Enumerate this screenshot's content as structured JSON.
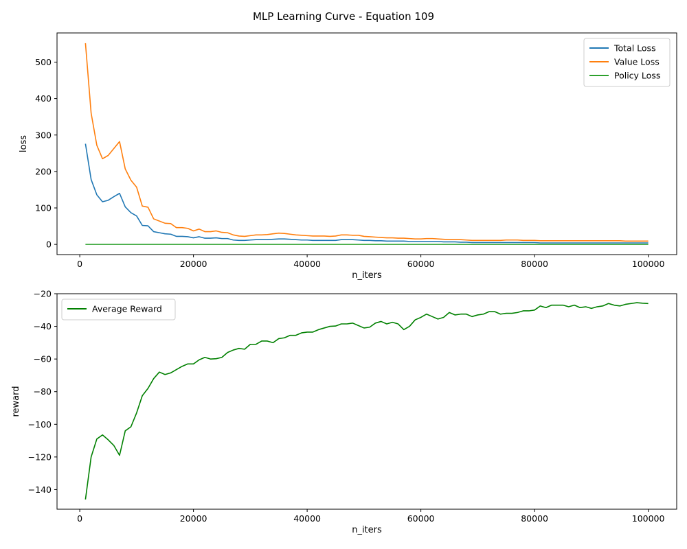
{
  "figure": {
    "title": "MLP Learning Curve - Equation 109"
  },
  "chart_data": [
    {
      "type": "line",
      "title": "",
      "xlabel": "n_iters",
      "ylabel": "loss",
      "xlim": [
        -4000,
        105000
      ],
      "ylim": [
        -28,
        580
      ],
      "xticks": [
        0,
        20000,
        40000,
        60000,
        80000,
        100000
      ],
      "yticks": [
        0,
        100,
        200,
        300,
        400,
        500
      ],
      "grid": false,
      "legend_position": "top-right",
      "x": [
        1000,
        2000,
        3000,
        4000,
        5000,
        6000,
        7000,
        8000,
        9000,
        10000,
        11000,
        12000,
        13000,
        14000,
        15000,
        16000,
        17000,
        18000,
        19000,
        20000,
        21000,
        22000,
        23000,
        24000,
        25000,
        26000,
        27000,
        28000,
        29000,
        30000,
        31000,
        32000,
        33000,
        34000,
        35000,
        36000,
        37000,
        38000,
        39000,
        40000,
        41000,
        42000,
        43000,
        44000,
        45000,
        46000,
        47000,
        48000,
        49000,
        50000,
        51000,
        52000,
        53000,
        54000,
        55000,
        56000,
        57000,
        58000,
        59000,
        60000,
        61000,
        62000,
        63000,
        64000,
        65000,
        66000,
        67000,
        68000,
        69000,
        70000,
        71000,
        72000,
        73000,
        74000,
        75000,
        76000,
        77000,
        78000,
        79000,
        80000,
        81000,
        82000,
        83000,
        84000,
        85000,
        86000,
        87000,
        88000,
        89000,
        90000,
        91000,
        92000,
        93000,
        94000,
        95000,
        96000,
        97000,
        98000,
        99000,
        100000
      ],
      "series": [
        {
          "name": "Total Loss",
          "color": "#1f77b4",
          "values": [
            276,
            178,
            136,
            117,
            121,
            131,
            140,
            103,
            87,
            78,
            52,
            51,
            35,
            32,
            29,
            28,
            22,
            22,
            21,
            18,
            21,
            17,
            17,
            18,
            16,
            16,
            12,
            11,
            11,
            12,
            13,
            13,
            13,
            14,
            15,
            15,
            14,
            13,
            12,
            12,
            11,
            11,
            11,
            11,
            11,
            13,
            13,
            13,
            12,
            11,
            11,
            10,
            10,
            9,
            9,
            9,
            9,
            8,
            8,
            8,
            8,
            8,
            8,
            7,
            7,
            7,
            6,
            6,
            5,
            5,
            5,
            5,
            5,
            5,
            5,
            5,
            5,
            5,
            5,
            5,
            4,
            4,
            4,
            4,
            4,
            4,
            4,
            4,
            4,
            4,
            4,
            4,
            4,
            4,
            4,
            4,
            4,
            4,
            4,
            4
          ]
        },
        {
          "name": "Value Loss",
          "color": "#ff7f0e",
          "values": [
            552,
            360,
            272,
            235,
            244,
            263,
            282,
            207,
            176,
            157,
            105,
            102,
            70,
            64,
            58,
            57,
            46,
            46,
            44,
            37,
            42,
            35,
            35,
            37,
            33,
            32,
            26,
            23,
            22,
            24,
            26,
            26,
            27,
            29,
            31,
            30,
            28,
            26,
            25,
            24,
            23,
            23,
            23,
            22,
            23,
            26,
            26,
            25,
            25,
            22,
            21,
            20,
            19,
            18,
            18,
            17,
            17,
            16,
            15,
            15,
            16,
            16,
            15,
            14,
            13,
            13,
            13,
            12,
            11,
            11,
            11,
            11,
            11,
            11,
            12,
            12,
            12,
            11,
            11,
            11,
            10,
            10,
            10,
            10,
            10,
            10,
            10,
            10,
            10,
            10,
            10,
            10,
            10,
            10,
            10,
            9,
            9,
            9,
            9,
            9
          ]
        },
        {
          "name": "Policy Loss",
          "color": "#2ca02c",
          "values": [
            0,
            0,
            0,
            0,
            0,
            0,
            0,
            0,
            0,
            0,
            0,
            0,
            0,
            0,
            0,
            0,
            0,
            0,
            0,
            0,
            0,
            0,
            0,
            0,
            0,
            0,
            0,
            0,
            0,
            0,
            0,
            0,
            0,
            0,
            0,
            0,
            0,
            0,
            0,
            0,
            0,
            0,
            0,
            0,
            0,
            0,
            0,
            0,
            0,
            0,
            0,
            0,
            0,
            0,
            0,
            0,
            0,
            0,
            0,
            0,
            0,
            0,
            0,
            0,
            0,
            0,
            0,
            0,
            0,
            0,
            0,
            0,
            0,
            0,
            0,
            0,
            0,
            0,
            0,
            0,
            0,
            0,
            0,
            0,
            0,
            0,
            0,
            0,
            0,
            0,
            0,
            0,
            0,
            0,
            0,
            0,
            0,
            0,
            0,
            0
          ]
        }
      ]
    },
    {
      "type": "line",
      "title": "",
      "xlabel": "n_iters",
      "ylabel": "reward",
      "xlim": [
        -4000,
        105000
      ],
      "ylim": [
        -152,
        -20
      ],
      "xticks": [
        0,
        20000,
        40000,
        60000,
        80000,
        100000
      ],
      "yticks": [
        -140,
        -120,
        -100,
        -80,
        -60,
        -40,
        -20
      ],
      "grid": false,
      "legend_position": "top-left",
      "x": [
        1000,
        2000,
        3000,
        4000,
        5000,
        6000,
        7000,
        8000,
        9000,
        10000,
        11000,
        12000,
        13000,
        14000,
        15000,
        16000,
        17000,
        18000,
        19000,
        20000,
        21000,
        22000,
        23000,
        24000,
        25000,
        26000,
        27000,
        28000,
        29000,
        30000,
        31000,
        32000,
        33000,
        34000,
        35000,
        36000,
        37000,
        38000,
        39000,
        40000,
        41000,
        42000,
        43000,
        44000,
        45000,
        46000,
        47000,
        48000,
        49000,
        50000,
        51000,
        52000,
        53000,
        54000,
        55000,
        56000,
        57000,
        58000,
        59000,
        60000,
        61000,
        62000,
        63000,
        64000,
        65000,
        66000,
        67000,
        68000,
        69000,
        70000,
        71000,
        72000,
        73000,
        74000,
        75000,
        76000,
        77000,
        78000,
        79000,
        80000,
        81000,
        82000,
        83000,
        84000,
        85000,
        86000,
        87000,
        88000,
        89000,
        90000,
        91000,
        92000,
        93000,
        94000,
        95000,
        96000,
        97000,
        98000,
        99000,
        100000
      ],
      "series": [
        {
          "name": "Average Reward",
          "color": "#008000",
          "values": [
            -146,
            -120,
            -109,
            -106.5,
            -109.5,
            -113,
            -119,
            -104,
            -101.5,
            -93,
            -82.5,
            -78,
            -72,
            -68,
            -69.5,
            -68.5,
            -66.5,
            -64.5,
            -63,
            -63,
            -60.5,
            -59,
            -60,
            -59.8,
            -59,
            -56,
            -54.5,
            -53.5,
            -54,
            -51,
            -51,
            -49,
            -49,
            -50,
            -47.5,
            -47,
            -45.5,
            -45.5,
            -44,
            -43.5,
            -43.5,
            -42,
            -41,
            -40,
            -39.8,
            -38.5,
            -38.5,
            -38,
            -39.5,
            -41,
            -40.5,
            -38,
            -37,
            -38.5,
            -37.5,
            -38.5,
            -42,
            -40,
            -36,
            -34.5,
            -32.5,
            -34,
            -35.5,
            -34.5,
            -31.5,
            -33,
            -32.5,
            -32.5,
            -34,
            -33,
            -32.5,
            -31,
            -31,
            -32.5,
            -32,
            -32,
            -31.5,
            -30.5,
            -30.5,
            -30,
            -27.5,
            -28.5,
            -27,
            -27,
            -27,
            -28,
            -27,
            -28.5,
            -28,
            -29,
            -28,
            -27.5,
            -26,
            -27,
            -27.5,
            -26.5,
            -26,
            -25.5,
            -25.8,
            -26
          ]
        }
      ]
    }
  ]
}
